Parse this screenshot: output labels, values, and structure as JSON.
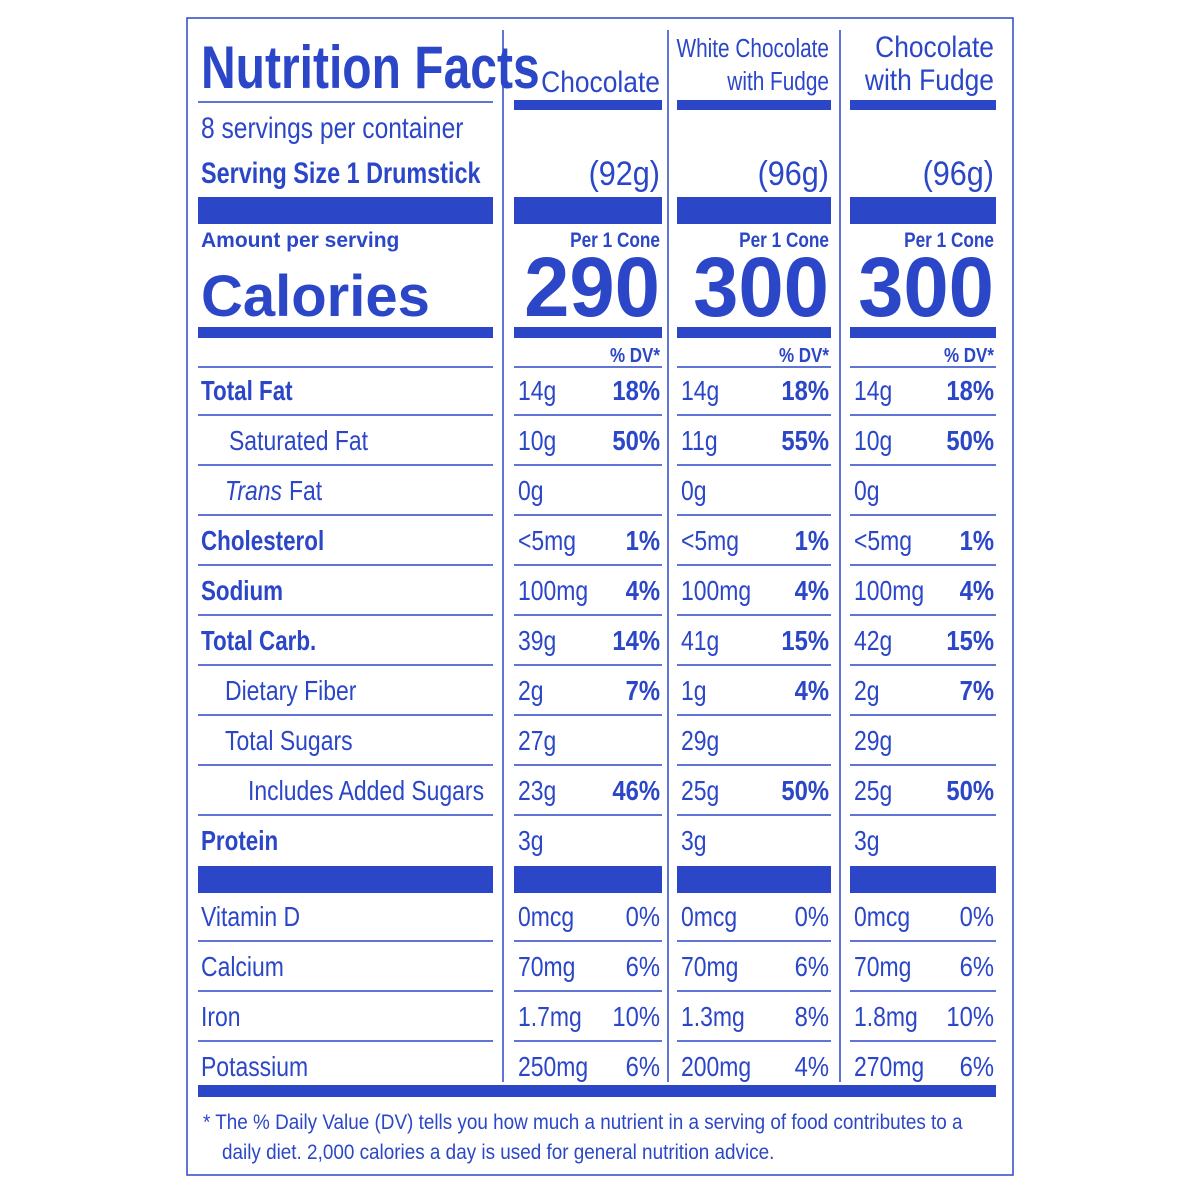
{
  "title": "Nutrition Facts",
  "servings": "8 servings per container",
  "serving_size": "Serving Size 1 Drumstick",
  "amount_per_serving": "Amount per serving",
  "calories_label": "Calories",
  "per_unit": "Per 1 Cone",
  "dv_header": "% DV*",
  "columns": [
    {
      "name_lines": [
        "Chocolate"
      ],
      "weight": "(92g)",
      "calories": "290"
    },
    {
      "name_lines": [
        "White Chocolate",
        "with Fudge"
      ],
      "weight": "(96g)",
      "calories": "300"
    },
    {
      "name_lines": [
        "Chocolate",
        "with Fudge"
      ],
      "weight": "(96g)",
      "calories": "300"
    }
  ],
  "nutrients": [
    {
      "label": "Total Fat",
      "values": [
        [
          "14g",
          "18%"
        ],
        [
          "14g",
          "18%"
        ],
        [
          "14g",
          "18%"
        ]
      ]
    },
    {
      "label": "Saturated Fat",
      "values": [
        [
          "10g",
          "50%"
        ],
        [
          "11g",
          "55%"
        ],
        [
          "10g",
          "50%"
        ]
      ]
    },
    {
      "label_italic": "Trans",
      "label": "Fat",
      "values": [
        [
          "0g"
        ],
        [
          "0g"
        ],
        [
          "0g"
        ]
      ]
    },
    {
      "label": "Cholesterol",
      "values": [
        [
          "<5mg",
          "1%"
        ],
        [
          "<5mg",
          "1%"
        ],
        [
          "<5mg",
          "1%"
        ]
      ]
    },
    {
      "label": "Sodium",
      "values": [
        [
          "100mg",
          "4%"
        ],
        [
          "100mg",
          "4%"
        ],
        [
          "100mg",
          "4%"
        ]
      ]
    },
    {
      "label": "Total Carb.",
      "values": [
        [
          "39g",
          "14%"
        ],
        [
          "41g",
          "15%"
        ],
        [
          "42g",
          "15%"
        ]
      ]
    },
    {
      "label": "Dietary Fiber",
      "values": [
        [
          "2g",
          "7%"
        ],
        [
          "1g",
          "4%"
        ],
        [
          "2g",
          "7%"
        ]
      ]
    },
    {
      "label": "Total Sugars",
      "values": [
        [
          "27g"
        ],
        [
          "29g"
        ],
        [
          "29g"
        ]
      ]
    },
    {
      "label": "Includes Added Sugars",
      "values": [
        [
          "23g",
          "46%"
        ],
        [
          "25g",
          "50%"
        ],
        [
          "25g",
          "50%"
        ]
      ]
    },
    {
      "label": "Protein",
      "values": [
        [
          "3g"
        ],
        [
          "3g"
        ],
        [
          "3g"
        ]
      ]
    }
  ],
  "vitamins": [
    {
      "label": "Vitamin D",
      "values": [
        [
          "0mcg",
          "0%"
        ],
        [
          "0mcg",
          "0%"
        ],
        [
          "0mcg",
          "0%"
        ]
      ]
    },
    {
      "label": "Calcium",
      "values": [
        [
          "70mg",
          "6%"
        ],
        [
          "70mg",
          "6%"
        ],
        [
          "70mg",
          "6%"
        ]
      ]
    },
    {
      "label": "Iron",
      "values": [
        [
          "1.7mg",
          "10%"
        ],
        [
          "1.3mg",
          "8%"
        ],
        [
          "1.8mg",
          "10%"
        ]
      ]
    },
    {
      "label": "Potassium",
      "values": [
        [
          "250mg",
          "6%"
        ],
        [
          "200mg",
          "4%"
        ],
        [
          "270mg",
          "6%"
        ]
      ]
    }
  ],
  "footnote_lines": [
    "* The % Daily Value (DV) tells you how much a nutrient in a serving of food contributes to a",
    "daily diet. 2,000 calories a day is used for general nutrition advice."
  ]
}
